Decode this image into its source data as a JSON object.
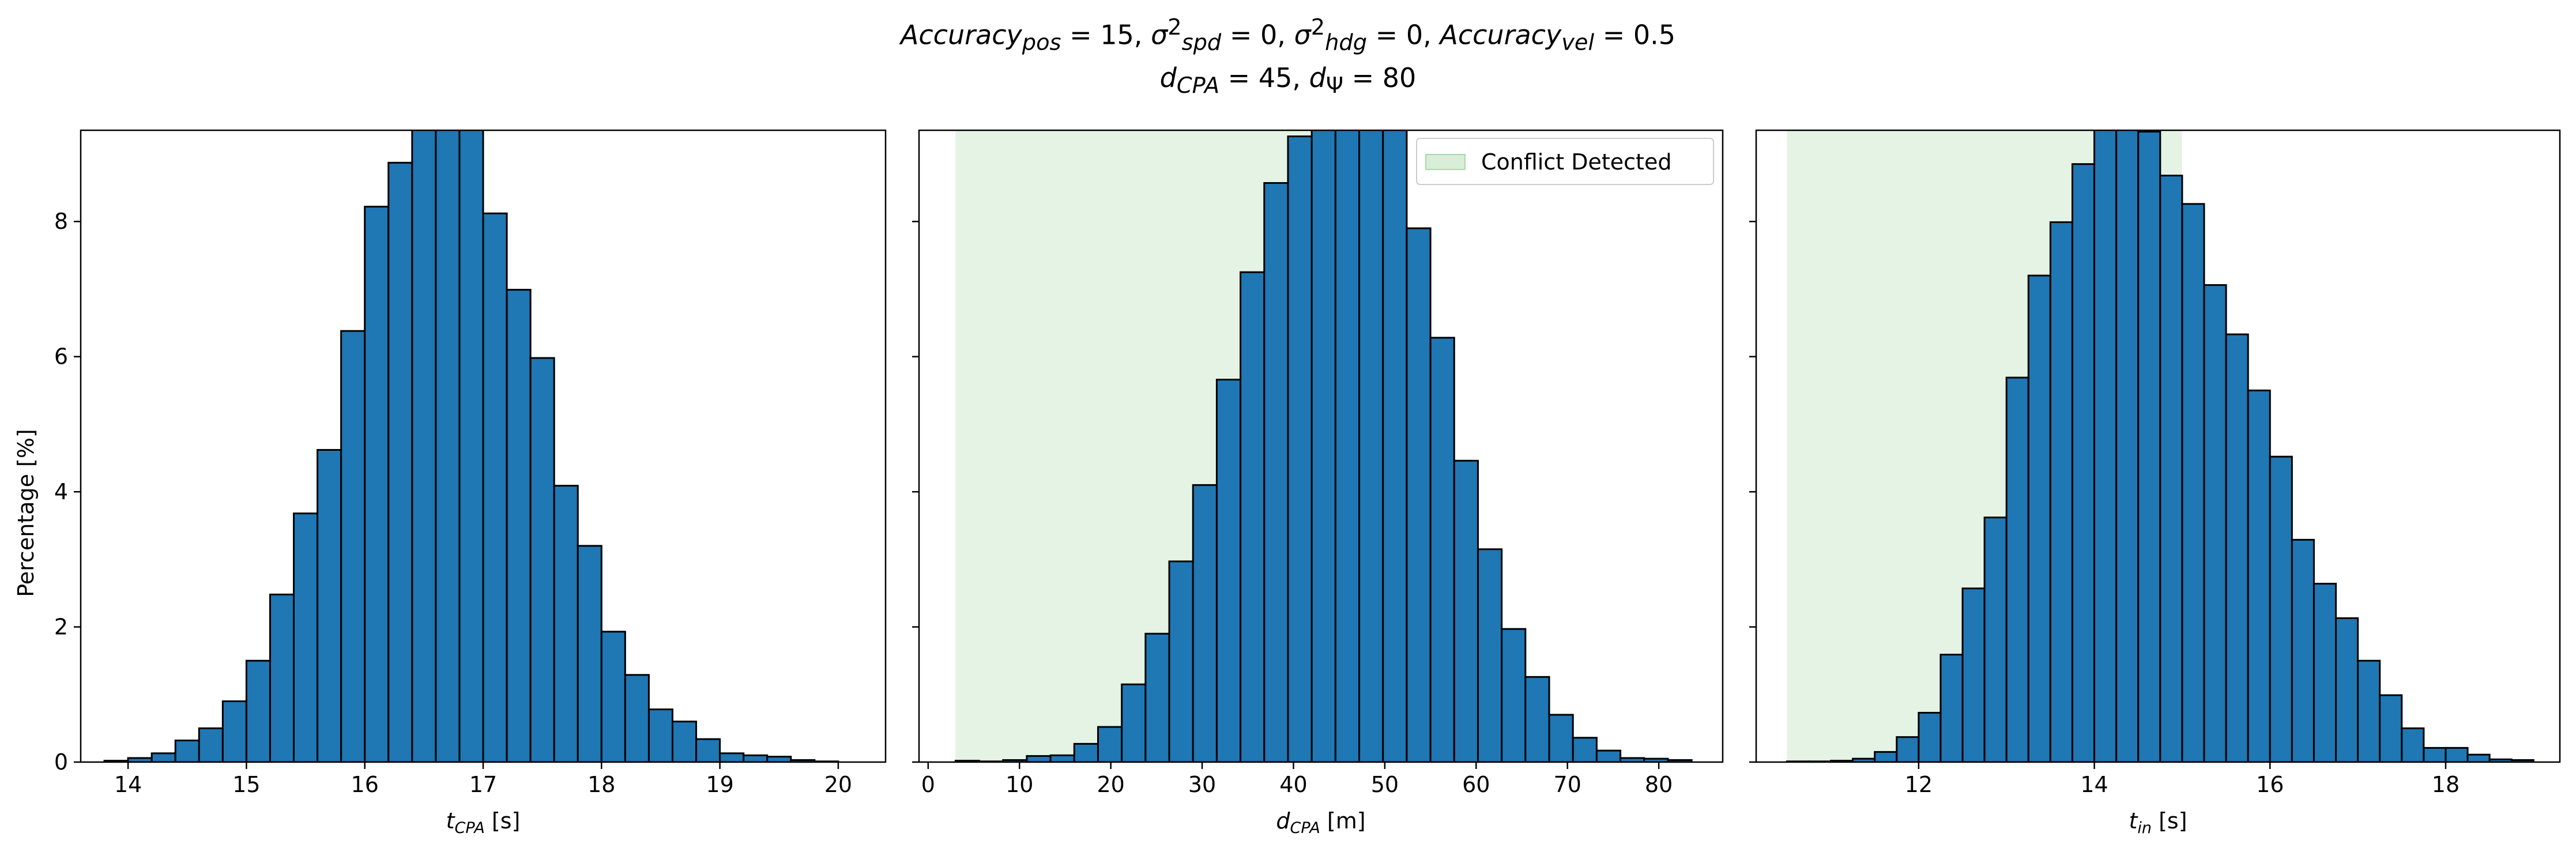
{
  "figure": {
    "title_line1_html": "<i>Accuracy</i><sub><i>pos</i></sub> = 15, <i>σ</i><sup>2</sup><sub><i>spd</i></sub> = 0, <i>σ</i><sup>2</sup><sub><i>hdg</i></sub> = 0, <i>Accuracy</i><sub><i>vel</i></sub> = 0.5",
    "title_line2_html": "<i>d</i><sub><i>CPA</i></sub> = 45, <i>d</i><sub>Ψ</sub> = 80",
    "ylabel": "Percentage [%]"
  },
  "chart_data": [
    {
      "type": "bar",
      "subtype": "histogram",
      "xlabel_main": "t",
      "xlabel_sub": "CPA",
      "xlabel_unit": "[s]",
      "xlim": [
        13.6,
        20.4
      ],
      "ylim": [
        0,
        9.35
      ],
      "xticks": [
        14,
        15,
        16,
        17,
        18,
        19,
        20
      ],
      "yticks": [
        0,
        2,
        4,
        6,
        8
      ],
      "bin_edges": [
        13.8,
        14.0,
        14.2,
        14.4,
        14.6,
        14.8,
        15.0,
        15.2,
        15.4,
        15.6,
        15.8,
        16.0,
        16.2,
        16.4,
        16.6,
        16.8,
        17.0,
        17.2,
        17.4,
        17.6,
        17.8,
        18.0,
        18.2,
        18.4,
        18.6,
        18.8,
        19.0,
        19.2,
        19.4,
        19.6,
        19.8,
        20.0
      ],
      "values": [
        0.02,
        0.06,
        0.13,
        0.32,
        0.5,
        0.9,
        1.5,
        2.48,
        3.68,
        4.62,
        6.38,
        8.22,
        8.87,
        9.42,
        10.2,
        10.3,
        8.12,
        6.99,
        5.98,
        4.09,
        3.2,
        1.93,
        1.29,
        0.78,
        0.6,
        0.34,
        0.13,
        0.1,
        0.08,
        0.03,
        0.01
      ],
      "bar_color": "#1f77b4",
      "shaded_region": null
    },
    {
      "type": "bar",
      "subtype": "histogram",
      "xlabel_main": "d",
      "xlabel_sub": "CPA",
      "xlabel_unit": "[m]",
      "xlim": [
        -1.0,
        87.0
      ],
      "ylim": [
        0,
        9.35
      ],
      "xticks": [
        0,
        10,
        20,
        30,
        40,
        50,
        60,
        70,
        80
      ],
      "yticks": [
        0,
        2,
        4,
        6,
        8
      ],
      "bin_edges": [
        3.0,
        5.6,
        8.2,
        10.8,
        13.4,
        16.0,
        18.6,
        21.2,
        23.8,
        26.4,
        29.0,
        31.6,
        34.2,
        36.8,
        39.4,
        42.0,
        44.6,
        47.2,
        49.8,
        52.4,
        55.0,
        57.6,
        60.2,
        62.8,
        65.4,
        68.0,
        70.6,
        73.2,
        75.8,
        78.4,
        81.0,
        83.6
      ],
      "values": [
        0.02,
        0.01,
        0.03,
        0.09,
        0.1,
        0.27,
        0.52,
        1.15,
        1.9,
        2.97,
        4.1,
        5.66,
        7.25,
        8.57,
        9.26,
        9.6,
        9.88,
        10.2,
        9.45,
        7.9,
        6.28,
        4.46,
        3.15,
        1.97,
        1.26,
        0.7,
        0.36,
        0.17,
        0.06,
        0.05,
        0.03
      ],
      "bar_color": "#1f77b4",
      "shaded_region": {
        "x0": 3.0,
        "x1": 45.0,
        "color": "#2ca02c",
        "opacity": 0.13
      },
      "legend": {
        "label": "Conflict Detected",
        "position": "upper right"
      }
    },
    {
      "type": "bar",
      "subtype": "histogram",
      "xlabel_main": "t",
      "xlabel_sub": "in",
      "xlabel_unit": "[s]",
      "xlim": [
        10.15,
        19.3
      ],
      "ylim": [
        0,
        9.35
      ],
      "xticks": [
        12,
        14,
        16,
        18
      ],
      "yticks": [
        0,
        2,
        4,
        6,
        8
      ],
      "bin_edges": [
        10.5,
        10.75,
        11.0,
        11.25,
        11.5,
        11.75,
        12.0,
        12.25,
        12.5,
        12.75,
        13.0,
        13.25,
        13.5,
        13.75,
        14.0,
        14.25,
        14.5,
        14.75,
        15.0,
        15.25,
        15.5,
        15.75,
        16.0,
        16.25,
        16.5,
        16.75,
        17.0,
        17.25,
        17.5,
        17.75,
        18.0,
        18.25,
        18.5,
        18.75,
        19.0
      ],
      "values": [
        0.01,
        0.01,
        0.02,
        0.05,
        0.15,
        0.37,
        0.73,
        1.59,
        2.57,
        3.62,
        5.69,
        7.2,
        7.99,
        8.85,
        9.72,
        9.44,
        9.33,
        8.68,
        8.26,
        7.06,
        6.33,
        5.5,
        4.52,
        3.29,
        2.64,
        2.13,
        1.5,
        0.99,
        0.5,
        0.21,
        0.21,
        0.11,
        0.04,
        0.03
      ],
      "bar_color": "#1f77b4",
      "shaded_region": {
        "x0": 10.5,
        "x1": 15.0,
        "color": "#2ca02c",
        "opacity": 0.13
      }
    }
  ]
}
